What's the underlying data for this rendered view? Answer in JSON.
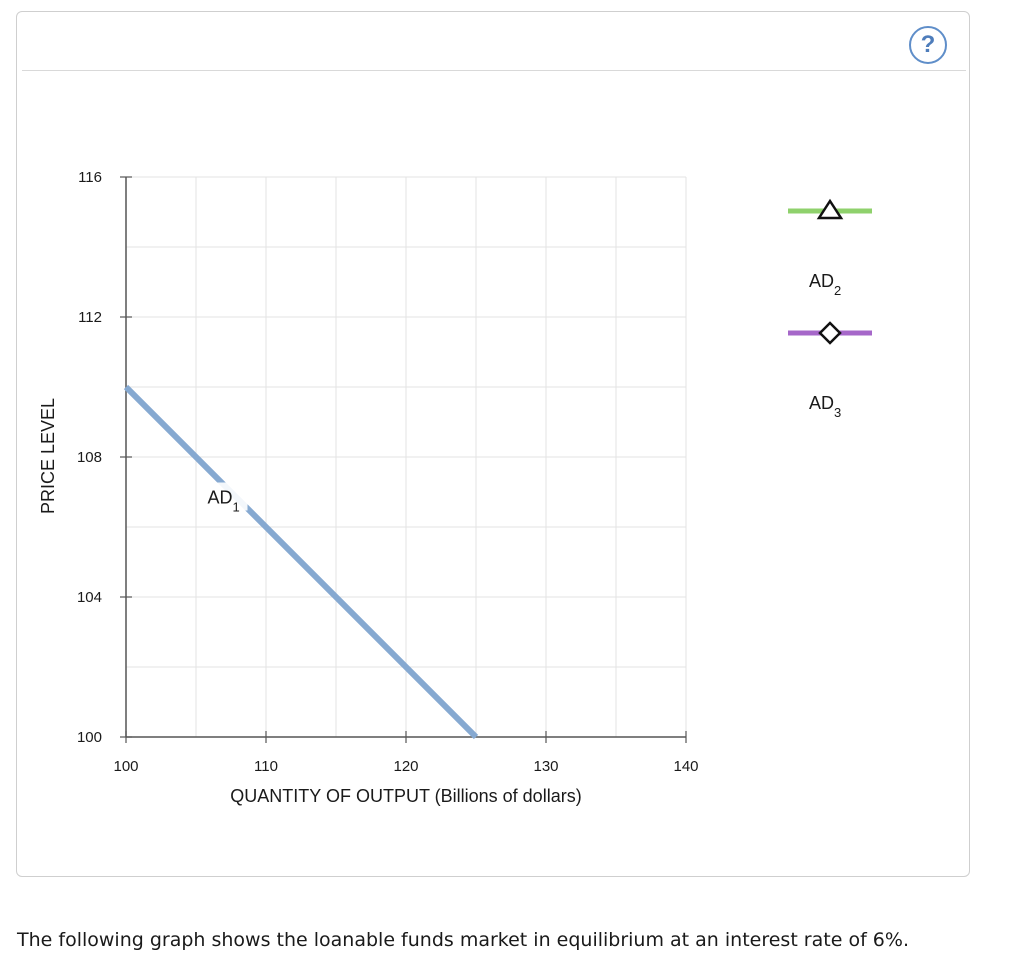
{
  "panel": {
    "help_label": "?"
  },
  "chart_data": {
    "type": "line",
    "title": "",
    "xlabel": "QUANTITY OF OUTPUT (Billions of dollars)",
    "ylabel": "PRICE LEVEL",
    "xlim": [
      100,
      140
    ],
    "ylim": [
      100,
      116
    ],
    "x_ticks": [
      100,
      110,
      120,
      130,
      140
    ],
    "y_ticks": [
      100,
      104,
      108,
      112,
      116
    ],
    "grid": true,
    "series": [
      {
        "name": "AD",
        "subscript": "1",
        "color": "#86a9d1",
        "points": [
          [
            100,
            110
          ],
          [
            125,
            100
          ]
        ]
      }
    ],
    "legend_position": "right",
    "legend": [
      {
        "label": "AD",
        "subscript": "2",
        "color": "#8fd16c",
        "marker": "triangle"
      },
      {
        "label": "AD",
        "subscript": "3",
        "color": "#a667c9",
        "marker": "diamond"
      }
    ]
  },
  "caption": "The following graph shows the loanable funds market in equilibrium at an interest rate of 6%."
}
